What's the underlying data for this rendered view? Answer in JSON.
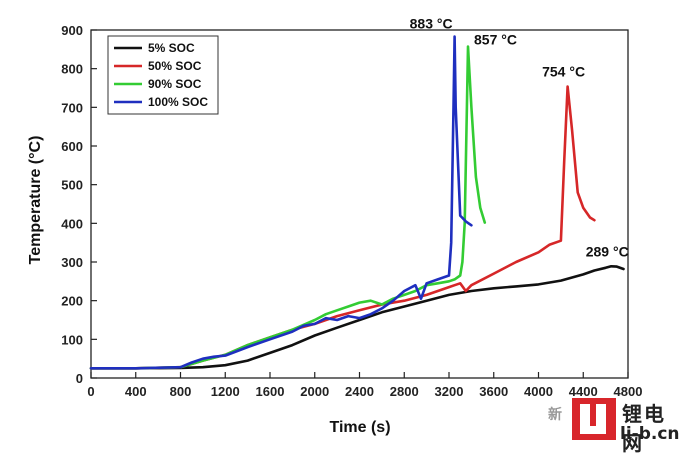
{
  "chart_data": {
    "type": "line",
    "xlabel": "Time (s)",
    "ylabel": "Temperature (°C)",
    "xlim": [
      0,
      4800
    ],
    "ylim": [
      0,
      900
    ],
    "xticks": [
      0,
      400,
      800,
      1200,
      1600,
      2000,
      2400,
      2800,
      3200,
      3600,
      4000,
      4400,
      4800
    ],
    "yticks": [
      0,
      100,
      200,
      300,
      400,
      500,
      600,
      700,
      800,
      900
    ],
    "legend_position": "top-left",
    "series": [
      {
        "name": "5% SOC",
        "color": "#111111",
        "x": [
          0,
          400,
          800,
          1000,
          1200,
          1400,
          1600,
          1800,
          2000,
          2200,
          2400,
          2600,
          2800,
          3000,
          3200,
          3400,
          3600,
          3800,
          4000,
          4200,
          4400,
          4500,
          4600,
          4650,
          4700,
          4760
        ],
        "y": [
          25,
          25,
          26,
          28,
          33,
          45,
          65,
          85,
          110,
          130,
          150,
          170,
          185,
          200,
          215,
          225,
          232,
          237,
          242,
          252,
          268,
          278,
          285,
          289,
          288,
          282
        ]
      },
      {
        "name": "50% SOC",
        "color": "#d62728",
        "x": [
          0,
          400,
          800,
          1000,
          1200,
          1400,
          1600,
          1800,
          2000,
          2200,
          2400,
          2600,
          2800,
          3000,
          3200,
          3250,
          3300,
          3350,
          3400,
          3600,
          3800,
          4000,
          4100,
          4200,
          4230,
          4260,
          4300,
          4350,
          4400,
          4460,
          4500
        ],
        "y": [
          25,
          25,
          28,
          45,
          60,
          85,
          105,
          125,
          140,
          160,
          175,
          190,
          200,
          215,
          235,
          240,
          245,
          225,
          240,
          270,
          300,
          325,
          345,
          355,
          560,
          754,
          640,
          480,
          440,
          415,
          408
        ]
      },
      {
        "name": "90% SOC",
        "color": "#33cc33",
        "x": [
          0,
          400,
          800,
          1000,
          1200,
          1400,
          1600,
          1800,
          2000,
          2100,
          2200,
          2300,
          2400,
          2500,
          2600,
          2700,
          2800,
          2900,
          3000,
          3100,
          3200,
          3250,
          3300,
          3320,
          3340,
          3360,
          3370,
          3400,
          3440,
          3480,
          3520
        ],
        "y": [
          25,
          25,
          28,
          45,
          60,
          85,
          105,
          125,
          150,
          165,
          175,
          185,
          195,
          200,
          190,
          205,
          215,
          225,
          240,
          245,
          250,
          255,
          265,
          300,
          400,
          700,
          857,
          700,
          520,
          440,
          402
        ]
      },
      {
        "name": "100% SOC",
        "color": "#1f2fbf",
        "x": [
          0,
          400,
          800,
          900,
          1000,
          1100,
          1200,
          1400,
          1600,
          1800,
          1900,
          2000,
          2100,
          2200,
          2300,
          2400,
          2500,
          2600,
          2700,
          2800,
          2900,
          2950,
          3000,
          3100,
          3200,
          3220,
          3240,
          3250,
          3260,
          3300,
          3350,
          3400
        ],
        "y": [
          25,
          25,
          28,
          40,
          50,
          55,
          58,
          80,
          100,
          120,
          135,
          140,
          155,
          150,
          160,
          155,
          165,
          180,
          200,
          225,
          240,
          205,
          245,
          255,
          265,
          350,
          700,
          883,
          700,
          420,
          405,
          395
        ]
      }
    ],
    "annotations": [
      {
        "text": "883 °C",
        "x": 3250,
        "y": 883,
        "anchor_dx": -2,
        "anchor_dy": -8,
        "align": "end"
      },
      {
        "text": "857 °C",
        "x": 3370,
        "y": 857,
        "anchor_dx": 6,
        "anchor_dy": -2,
        "align": "start"
      },
      {
        "text": "754 °C",
        "x": 4260,
        "y": 754,
        "anchor_dx": -4,
        "anchor_dy": -10,
        "align": "middle"
      },
      {
        "text": "289 °C",
        "x": 4650,
        "y": 289,
        "anchor_dx": -4,
        "anchor_dy": -10,
        "align": "middle"
      }
    ]
  },
  "watermark": {
    "brand_cn": "锂电网",
    "domain": "li-b.cn",
    "chat_label": "新"
  }
}
